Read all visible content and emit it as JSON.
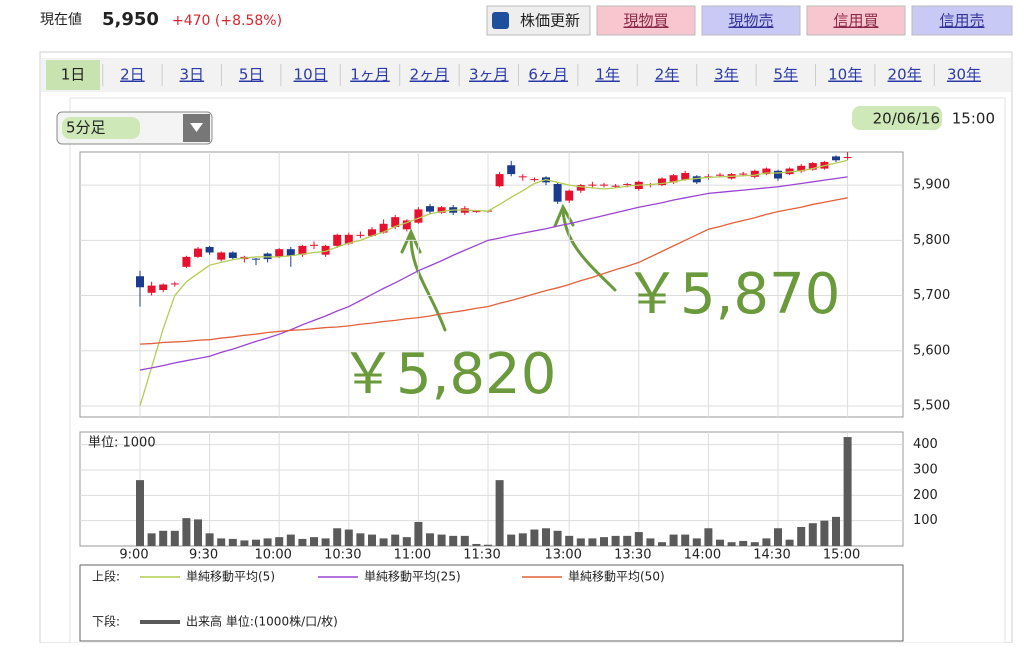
{
  "header": {
    "label": "現在値",
    "price": "5,950",
    "change": "+470 (+8.58%)"
  },
  "buttons": [
    "株価更新",
    "現物買",
    "現物売",
    "信用買",
    "信用売"
  ],
  "tabs": [
    "1日",
    "2日",
    "3日",
    "5日",
    "10日",
    "1ヶ月",
    "2ヶ月",
    "3ヶ月",
    "6ヶ月",
    "1年",
    "2年",
    "3年",
    "5年",
    "10年",
    "20年",
    "30年"
  ],
  "interval": "5分足",
  "datetime": {
    "date": "20/06/16",
    "time": "15:00"
  },
  "chart_data": [
    {
      "type": "candlestick",
      "legend_label": "上段:",
      "up_color": "#e8112d",
      "down_color": "#1b3b8f",
      "grid": true,
      "ylim": [
        5480,
        5960
      ],
      "yticks": [
        {
          "value": 5500,
          "label": "5,500"
        },
        {
          "value": 5600,
          "label": "5,600"
        },
        {
          "value": 5700,
          "label": "5,700"
        },
        {
          "value": 5800,
          "label": "5,800"
        },
        {
          "value": 5900,
          "label": "5,900"
        }
      ],
      "open": [
        5735,
        5705,
        5710,
        5720,
        5752,
        5770,
        5788,
        5765,
        5778,
        5766,
        5766,
        5776,
        5770,
        5784,
        5774,
        5790,
        5774,
        5790,
        5794,
        5808,
        5808,
        5814,
        5824,
        5820,
        5832,
        5862,
        5850,
        5860,
        5850,
        5852,
        5852,
        5898,
        5936,
        5914,
        5910,
        5914,
        5902,
        5872,
        5890,
        5899,
        5900,
        5898,
        5900,
        5893,
        5900,
        5900,
        5905,
        5910,
        5916,
        5914,
        5917,
        5912,
        5920,
        5915,
        5920,
        5926,
        5920,
        5925,
        5928,
        5930,
        5952,
        5950
      ],
      "high": [
        5745,
        5725,
        5722,
        5725,
        5772,
        5788,
        5790,
        5780,
        5780,
        5772,
        5768,
        5778,
        5786,
        5788,
        5792,
        5798,
        5792,
        5812,
        5814,
        5816,
        5824,
        5838,
        5846,
        5838,
        5860,
        5866,
        5862,
        5864,
        5862,
        5854,
        5854,
        5924,
        5944,
        5920,
        5914,
        5916,
        5904,
        5892,
        5902,
        5906,
        5904,
        5902,
        5904,
        5908,
        5904,
        5914,
        5920,
        5926,
        5918,
        5920,
        5922,
        5922,
        5924,
        5928,
        5932,
        5928,
        5932,
        5938,
        5942,
        5944,
        5954,
        5960
      ],
      "low": [
        5680,
        5700,
        5706,
        5716,
        5750,
        5768,
        5774,
        5762,
        5764,
        5760,
        5755,
        5760,
        5768,
        5752,
        5770,
        5784,
        5770,
        5786,
        5792,
        5804,
        5806,
        5812,
        5820,
        5816,
        5830,
        5848,
        5848,
        5846,
        5846,
        5850,
        5850,
        5896,
        5916,
        5908,
        5906,
        5900,
        5866,
        5868,
        5886,
        5894,
        5896,
        5894,
        5896,
        5890,
        5896,
        5898,
        5902,
        5908,
        5902,
        5910,
        5914,
        5910,
        5916,
        5912,
        5918,
        5908,
        5918,
        5922,
        5926,
        5928,
        5942,
        5946
      ],
      "close": [
        5715,
        5718,
        5720,
        5721,
        5770,
        5785,
        5778,
        5778,
        5768,
        5770,
        5765,
        5766,
        5784,
        5772,
        5790,
        5791,
        5790,
        5810,
        5810,
        5809,
        5820,
        5830,
        5842,
        5836,
        5856,
        5852,
        5860,
        5850,
        5858,
        5852,
        5853,
        5920,
        5920,
        5915,
        5910,
        5905,
        5870,
        5890,
        5900,
        5900,
        5900,
        5898,
        5901,
        5906,
        5901,
        5912,
        5918,
        5922,
        5905,
        5915,
        5918,
        5920,
        5920,
        5926,
        5930,
        5912,
        5930,
        5935,
        5940,
        5942,
        5945,
        5950
      ],
      "series": [
        {
          "name": "単純移動平均(5)",
          "color": "#b3cc52",
          "values": [
            5500,
            5570,
            5640,
            5700,
            5725,
            5740,
            5755,
            5760,
            5765,
            5768,
            5770,
            5770,
            5770,
            5772,
            5775,
            5778,
            5780,
            5788,
            5795,
            5800,
            5808,
            5815,
            5825,
            5832,
            5840,
            5848,
            5852,
            5855,
            5855,
            5854,
            5853,
            5865,
            5878,
            5890,
            5903,
            5910,
            5905,
            5900,
            5897,
            5895,
            5893,
            5895,
            5898,
            5900,
            5901,
            5903,
            5906,
            5910,
            5912,
            5914,
            5915,
            5916,
            5917,
            5918,
            5922,
            5922,
            5924,
            5926,
            5930,
            5935,
            5940,
            5945
          ]
        },
        {
          "name": "単純移動平均(25)",
          "color": "#9a45d4",
          "values": [
            5565,
            5569,
            5573,
            5578,
            5582,
            5586,
            5590,
            5597,
            5603,
            5610,
            5617,
            5623,
            5630,
            5638,
            5647,
            5655,
            5663,
            5672,
            5680,
            5691,
            5702,
            5713,
            5723,
            5734,
            5745,
            5754,
            5763,
            5773,
            5782,
            5791,
            5800,
            5804,
            5809,
            5813,
            5817,
            5821,
            5826,
            5830,
            5835,
            5840,
            5845,
            5850,
            5855,
            5860,
            5864,
            5868,
            5873,
            5877,
            5881,
            5885,
            5887,
            5889,
            5891,
            5893,
            5895,
            5897,
            5900,
            5903,
            5906,
            5909,
            5912,
            5915
          ]
        },
        {
          "name": "単純移動平均(50)",
          "color": "#e2613c",
          "values": [
            5612,
            5613,
            5615,
            5616,
            5617,
            5619,
            5620,
            5623,
            5625,
            5628,
            5630,
            5633,
            5635,
            5637,
            5638,
            5640,
            5642,
            5643,
            5645,
            5648,
            5650,
            5653,
            5655,
            5658,
            5660,
            5663,
            5667,
            5670,
            5673,
            5677,
            5680,
            5686,
            5691,
            5697,
            5703,
            5709,
            5714,
            5720,
            5727,
            5733,
            5740,
            5747,
            5753,
            5760,
            5770,
            5780,
            5790,
            5800,
            5810,
            5820,
            5825,
            5831,
            5836,
            5841,
            5847,
            5852,
            5856,
            5860,
            5865,
            5869,
            5873,
            5877
          ]
        }
      ],
      "annotations": [
        {
          "text": "￥5,820",
          "value": 5820,
          "color": "#6a9a3c"
        },
        {
          "text": "￥5,870",
          "value": 5870,
          "color": "#6a9a3c"
        }
      ]
    },
    {
      "type": "bar",
      "title": "単位: 1000",
      "legend_label": "下段:",
      "grid": true,
      "categories": [
        "9:00",
        null,
        null,
        null,
        null,
        null,
        "9:30",
        null,
        null,
        null,
        null,
        null,
        "10:00",
        null,
        null,
        null,
        null,
        null,
        "10:30",
        null,
        null,
        null,
        null,
        null,
        "11:00",
        null,
        null,
        null,
        null,
        null,
        "11:30",
        null,
        null,
        null,
        null,
        null,
        null,
        "13:00",
        null,
        null,
        null,
        null,
        null,
        "13:30",
        null,
        null,
        null,
        null,
        null,
        "14:00",
        null,
        null,
        null,
        null,
        null,
        "14:30",
        null,
        null,
        null,
        null,
        null,
        "15:00"
      ],
      "ylim": [
        0,
        450
      ],
      "yticks": [
        100,
        200,
        300,
        400
      ],
      "series": [
        {
          "name": "出来高 単位:(1000株/口/枚)",
          "color": "#5a5a5a",
          "values": [
            260,
            50,
            60,
            60,
            110,
            105,
            50,
            30,
            28,
            22,
            25,
            30,
            35,
            45,
            28,
            35,
            30,
            70,
            65,
            50,
            45,
            30,
            45,
            35,
            95,
            50,
            45,
            40,
            40,
            8,
            5,
            260,
            45,
            50,
            65,
            70,
            60,
            40,
            30,
            30,
            35,
            40,
            40,
            55,
            30,
            15,
            45,
            45,
            30,
            70,
            25,
            15,
            20,
            15,
            30,
            70,
            25,
            75,
            90,
            100,
            115,
            430
          ]
        }
      ]
    }
  ]
}
